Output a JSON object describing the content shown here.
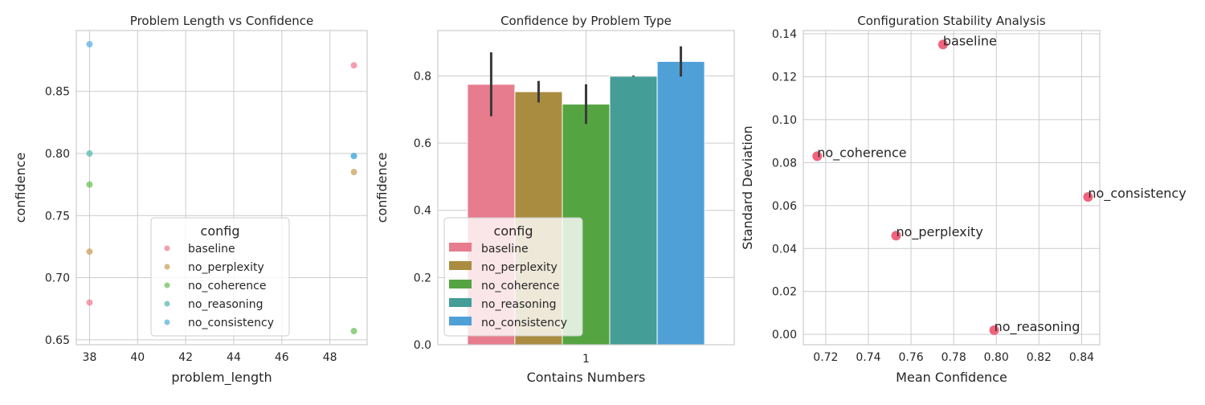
{
  "chart_data": [
    {
      "type": "scatter",
      "title": "Problem Length vs Confidence",
      "xlabel": "problem_length",
      "ylabel": "confidence",
      "xlim": [
        37.45,
        49.55
      ],
      "ylim": [
        0.646,
        0.899
      ],
      "xticks": [
        38,
        40,
        42,
        44,
        46,
        48
      ],
      "yticks": [
        0.65,
        0.7,
        0.75,
        0.8,
        0.85
      ],
      "ytick_labels": [
        "0.65",
        "0.70",
        "0.75",
        "0.80",
        "0.85"
      ],
      "grid": true,
      "legend": {
        "title": "config",
        "placement": "lower-center"
      },
      "series": [
        {
          "name": "baseline",
          "color": "#f07f92",
          "points": [
            [
              38,
              0.68
            ],
            [
              49,
              0.871
            ]
          ]
        },
        {
          "name": "no_perplexity",
          "color": "#cba15a",
          "points": [
            [
              38,
              0.721
            ],
            [
              49,
              0.785
            ]
          ]
        },
        {
          "name": "no_coherence",
          "color": "#6ec25a",
          "points": [
            [
              38,
              0.775
            ],
            [
              49,
              0.657
            ]
          ]
        },
        {
          "name": "no_reasoning",
          "color": "#5bb8b3",
          "points": [
            [
              38,
              0.8
            ],
            [
              49,
              0.798
            ]
          ]
        },
        {
          "name": "no_consistency",
          "color": "#5eb1e6",
          "points": [
            [
              38,
              0.888
            ],
            [
              49,
              0.798
            ]
          ]
        }
      ]
    },
    {
      "type": "bar",
      "title": "Confidence by Problem Type",
      "xlabel": "Contains Numbers",
      "ylabel": "confidence",
      "categories": [
        "1"
      ],
      "ylim": [
        0,
        0.935
      ],
      "yticks": [
        0,
        0.2,
        0.4,
        0.6,
        0.8
      ],
      "ytick_labels": [
        "0.0",
        "0.2",
        "0.4",
        "0.6",
        "0.8"
      ],
      "grid": true,
      "legend": {
        "title": "config",
        "placement": "lower-left"
      },
      "series": [
        {
          "name": "baseline",
          "color": "#e77c8e",
          "values": [
            0.775
          ],
          "ci": [
            0.68,
            0.87
          ]
        },
        {
          "name": "no_perplexity",
          "color": "#a98c40",
          "values": [
            0.753
          ],
          "ci": [
            0.721,
            0.785
          ]
        },
        {
          "name": "no_coherence",
          "color": "#55a442",
          "values": [
            0.716
          ],
          "ci": [
            0.657,
            0.775
          ]
        },
        {
          "name": "no_reasoning",
          "color": "#459d97",
          "values": [
            0.799
          ],
          "ci": [
            0.798,
            0.801
          ]
        },
        {
          "name": "no_consistency",
          "color": "#50a0d8",
          "values": [
            0.843
          ],
          "ci": [
            0.798,
            0.888
          ]
        }
      ]
    },
    {
      "type": "scatter",
      "title": "Configuration Stability Analysis",
      "xlabel": "Mean Confidence",
      "ylabel": "Standard Deviation",
      "xlim": [
        0.7095,
        0.8485
      ],
      "ylim": [
        -0.0048,
        0.1415
      ],
      "xticks": [
        0.72,
        0.74,
        0.76,
        0.78,
        0.8,
        0.82,
        0.84
      ],
      "xtick_labels": [
        "0.72",
        "0.74",
        "0.76",
        "0.78",
        "0.80",
        "0.82",
        "0.84"
      ],
      "yticks": [
        0.0,
        0.02,
        0.04,
        0.06,
        0.08,
        0.1,
        0.12,
        0.14
      ],
      "ytick_labels": [
        "0.00",
        "0.02",
        "0.04",
        "0.06",
        "0.08",
        "0.10",
        "0.12",
        "0.14"
      ],
      "grid": true,
      "color": "#f0637d",
      "points": [
        {
          "label": "baseline",
          "x": 0.775,
          "y": 0.135
        },
        {
          "label": "no_coherence",
          "x": 0.716,
          "y": 0.083
        },
        {
          "label": "no_consistency",
          "x": 0.843,
          "y": 0.064
        },
        {
          "label": "no_perplexity",
          "x": 0.753,
          "y": 0.046
        },
        {
          "label": "no_reasoning",
          "x": 0.799,
          "y": 0.002
        }
      ]
    }
  ]
}
